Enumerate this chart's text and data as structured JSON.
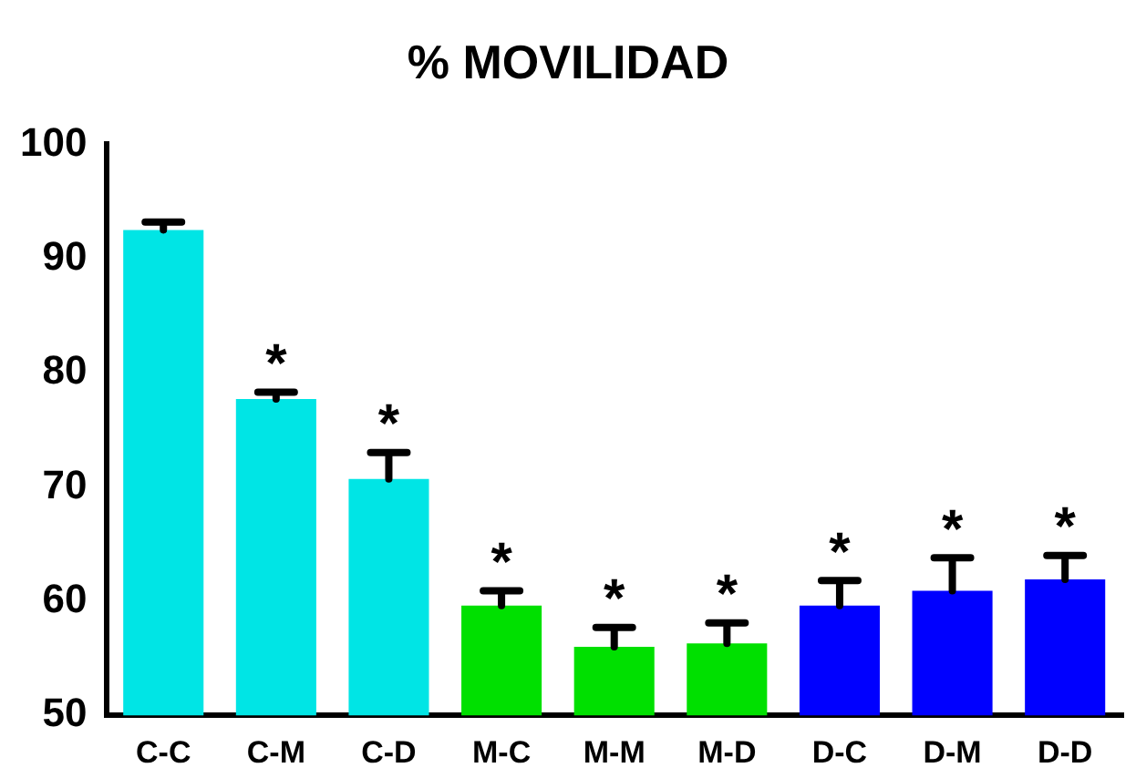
{
  "chart_data": {
    "type": "bar",
    "title": "% MOVILIDAD",
    "categories": [
      "C-C",
      "C-M",
      "C-D",
      "M-C",
      "M-M",
      "M-D",
      "D-C",
      "D-M",
      "D-D"
    ],
    "values": [
      92.5,
      77.7,
      70.7,
      59.6,
      56.0,
      56.3,
      59.6,
      60.9,
      61.9
    ],
    "colors": [
      "#00e5e5",
      "#00e5e5",
      "#00e5e5",
      "#00e000",
      "#00e000",
      "#00e000",
      "#0000ff",
      "#0000ff",
      "#0000ff"
    ],
    "errors": [
      [
        92.5,
        93.2
      ],
      [
        77.7,
        78.3
      ],
      [
        70.7,
        73.0
      ],
      [
        59.6,
        60.9
      ],
      [
        56.0,
        57.7
      ],
      [
        56.3,
        58.1
      ],
      [
        59.6,
        61.8
      ],
      [
        60.9,
        63.8
      ],
      [
        61.9,
        64.0
      ]
    ],
    "annotations": [
      {
        "text": "*",
        "x": "C-M",
        "y": 78.3
      },
      {
        "text": "*",
        "x": "C-D",
        "y": 73.0
      },
      {
        "text": "*",
        "x": "M-C",
        "y": 60.9
      },
      {
        "text": "*",
        "x": "M-M",
        "y": 57.7
      },
      {
        "text": "*",
        "x": "M-D",
        "y": 58.1
      },
      {
        "text": "*",
        "x": "D-C",
        "y": 61.8
      },
      {
        "text": "*",
        "x": "D-M",
        "y": 63.8
      },
      {
        "text": "*",
        "x": "D-D",
        "y": 64.0
      }
    ],
    "ylim": [
      50,
      100
    ],
    "yticks": [
      50,
      60,
      70,
      80,
      90,
      100
    ],
    "grid": false,
    "legend": false
  }
}
